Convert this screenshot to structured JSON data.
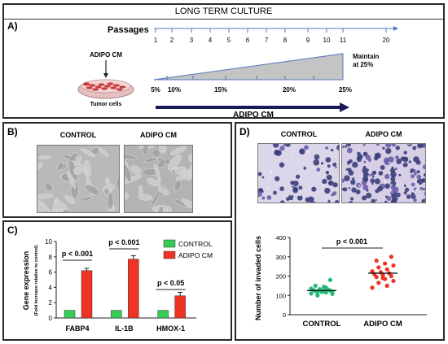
{
  "panel_a": {
    "title": "LONG TERM CULTURE",
    "label": "A)",
    "passages_label": "Passages",
    "passages": [
      "1",
      "2",
      "3",
      "4",
      "5",
      "6",
      "7",
      "8",
      "9",
      "10",
      "11",
      "20"
    ],
    "adipo_cm_label": "ADIPO CM",
    "tumor_label": "Tumor cells",
    "maintain_label": "Maintain\nat 25%",
    "percents": [
      "5%",
      "10%",
      "15%",
      "20%",
      "25%"
    ],
    "arrow_label": "ADIPO CM"
  },
  "panel_b": {
    "label": "B)",
    "control_label": "CONTROL",
    "adipo_label": "ADIPO CM"
  },
  "panel_d": {
    "label": "D)",
    "control_label": "CONTROL",
    "adipo_label": "ADIPO CM",
    "pvalue": "p < 0.001"
  },
  "panel_c": {
    "label": "C)",
    "ylabel": "Gene expression",
    "ylabel_sub": "(Fold increase relative to control)",
    "legend": [
      "CONTROL",
      "ADIPO CM"
    ],
    "pvalues": [
      "p < 0.001",
      "p < 0.001",
      "p < 0.05"
    ]
  },
  "chart_data": [
    {
      "type": "bar",
      "categories": [
        "FABP4",
        "IL-1B",
        "HMOX-1"
      ],
      "series": [
        {
          "name": "CONTROL",
          "values": [
            1,
            1,
            1
          ],
          "color": "#33cc55"
        },
        {
          "name": "ADIPO CM",
          "values": [
            6.2,
            7.7,
            2.9
          ],
          "errors": [
            0.3,
            0.45,
            0.45
          ],
          "color": "#ee3322"
        }
      ],
      "ylim": [
        0,
        10
      ],
      "yticks": [
        0,
        2,
        4,
        6,
        8,
        10
      ],
      "ylabel": "Gene expression",
      "legend_position": "top-right",
      "grid": false
    },
    {
      "type": "scatter",
      "categories": [
        "CONTROL",
        "ADIPO CM"
      ],
      "ylabel": "Number of invaded cells",
      "ylim": [
        0,
        400
      ],
      "yticks": [
        0,
        100,
        200,
        300,
        400
      ],
      "series": [
        {
          "name": "CONTROL",
          "color": "#22bb77",
          "mean": 125,
          "values": [
            110,
            115,
            118,
            120,
            122,
            123,
            125,
            126,
            128,
            130,
            132,
            135,
            140,
            100,
            108,
            145,
            150,
            180,
            118
          ]
        },
        {
          "name": "ADIPO CM",
          "color": "#ee3322",
          "mean": 215,
          "values": [
            140,
            150,
            165,
            175,
            185,
            195,
            200,
            205,
            210,
            215,
            220,
            225,
            235,
            245,
            255,
            265,
            280,
            300,
            190
          ]
        }
      ],
      "grid": false
    }
  ]
}
